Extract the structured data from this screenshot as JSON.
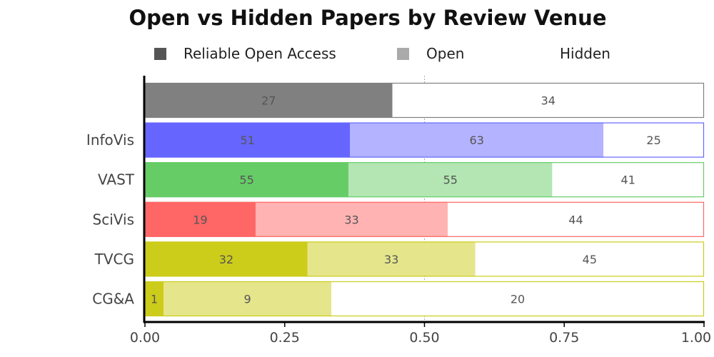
{
  "chart_data": {
    "type": "bar",
    "orientation": "horizontal",
    "stacked": true,
    "normalized": true,
    "title": "Open vs Hidden Papers by Review Venue",
    "categories": [
      "",
      "InfoVis",
      "VAST",
      "SciVis",
      "TVCG",
      "CG&A"
    ],
    "series": [
      {
        "name": "Reliable Open Access",
        "values": [
          27,
          51,
          55,
          19,
          32,
          1
        ]
      },
      {
        "name": "Open",
        "values": [
          0,
          63,
          55,
          33,
          33,
          9
        ]
      },
      {
        "name": "Hidden",
        "values": [
          34,
          25,
          41,
          44,
          45,
          20
        ]
      }
    ],
    "xlim": [
      0,
      1
    ],
    "xticks": [
      "0.00",
      "0.25",
      "0.50",
      "0.75",
      "1.00"
    ],
    "reference_line": 0.5,
    "legend_position": "top",
    "colors": {
      "categories": [
        "#808080",
        "#6666ff",
        "#66cc66",
        "#ff6666",
        "#cccc1a",
        "#cccc1a"
      ],
      "light": [
        "#b3b3b3",
        "#b3b3ff",
        "#b3e6b3",
        "#ffb3b3",
        "#e5e58c",
        "#e5e58c"
      ],
      "legend": [
        "#555555",
        "#aaaaaa",
        "#ffffff"
      ]
    }
  }
}
